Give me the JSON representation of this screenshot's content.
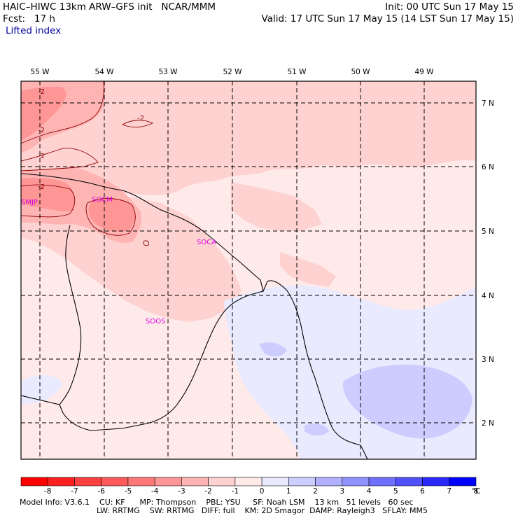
{
  "header": {
    "model": "HAIC–HIWC 13km ARW–GFS init   NCAR/MMM",
    "fcst": "Fcst:   17 h",
    "init": "Init: 00 UTC Sun 17 May 15",
    "valid": "Valid: 17 UTC Sun 17 May 15 (14 LST Sun 17 May 15)",
    "field": "Lifted index"
  },
  "map": {
    "lon_labels": [
      "55 W",
      "54 W",
      "53 W",
      "52 W",
      "51 W",
      "50 W",
      "49 W"
    ],
    "lat_labels": [
      "7 N",
      "6 N",
      "5 N",
      "4 N",
      "3 N",
      "2 N"
    ],
    "stations": [
      "SMJP",
      "SOCM",
      "SOCA",
      "SOOS"
    ],
    "contour_labels": [
      "-2",
      "-2",
      "-2",
      "-2",
      "-2"
    ]
  },
  "colorbar": {
    "ticks": [
      "-8",
      "-7",
      "-6",
      "-5",
      "-4",
      "-3",
      "-2",
      "-1",
      "0",
      "1",
      "2",
      "3",
      "4",
      "5",
      "6",
      "7",
      "8"
    ],
    "unit": "°C",
    "colors": [
      "#ff0000",
      "#ff2020",
      "#ff4040",
      "#ff5a5a",
      "#ff7878",
      "#ff9696",
      "#ffb4b4",
      "#ffd2d2",
      "#ffeaea",
      "#eaeaff",
      "#ccccff",
      "#b0b0ff",
      "#9090ff",
      "#7070ff",
      "#5050ff",
      "#2828ff",
      "#0000ff"
    ]
  },
  "footer": {
    "line1": "Model Info: V3.6.1    CU: KF      MP: Thompson    PBL: YSU     SF: Noah LSM    13 km   51 levels   60 sec",
    "line2": "LW: RRTMG    SW: RRTMG   DIFF: full    KM: 2D Smagor  DAMP: Rayleigh3   SFLAY: MM5"
  },
  "colors": {
    "bg": "#ffeaea",
    "neg1": "#ffd2d2",
    "neg2": "#ffb4b4",
    "neg3": "#ff9696",
    "pos1": "#eaeaff",
    "pos2": "#ccccff",
    "station": "#dd00dd",
    "title_field": "#0000a0"
  }
}
